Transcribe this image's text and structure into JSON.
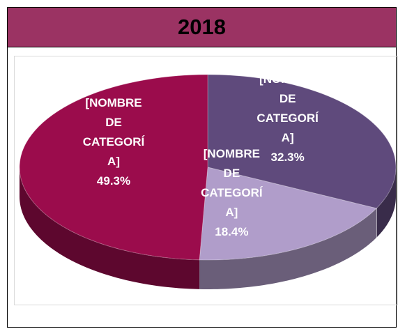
{
  "chart_data": {
    "type": "pie",
    "title": "2018",
    "categories": [
      "[NOMBRE DE CATEGORÍA]",
      "[NOMBRE DE CATEGORÍA]",
      "[NOMBRE DE CATEGORÍA]"
    ],
    "values": [
      32.3,
      18.4,
      49.3
    ],
    "value_labels": [
      "32.3%",
      "18.4%",
      "49.3%"
    ],
    "colors": [
      "#5f4a7c",
      "#b09dca",
      "#9b0c4c"
    ]
  }
}
